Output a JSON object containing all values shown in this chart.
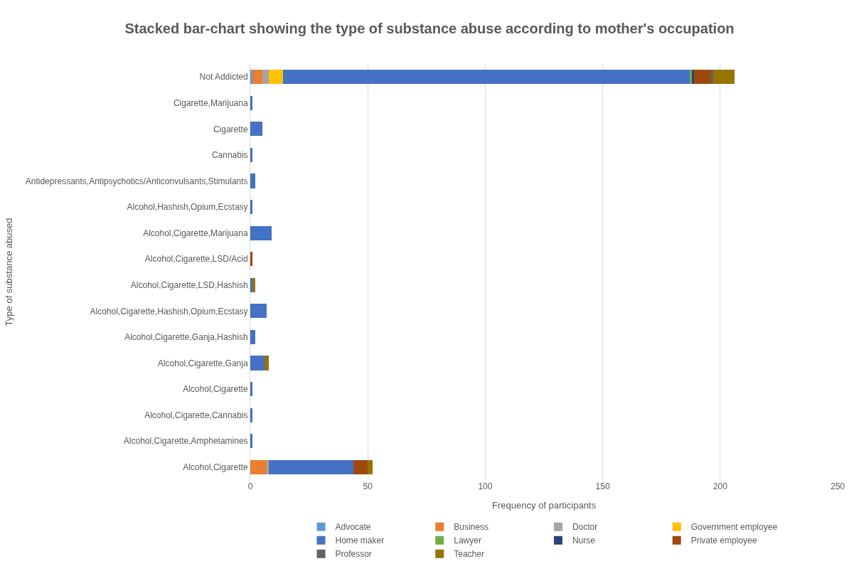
{
  "chart_data": {
    "type": "bar",
    "orientation": "horizontal",
    "stacked": true,
    "title": "Stacked bar-chart showing the type of substance abuse according to mother's occupation",
    "xlabel": "Frequency of participants",
    "ylabel": "Type of substance abused",
    "categories": [
      "Not Addicted",
      "Cigarette,Marijuana",
      "Cigarette",
      "Cannabis",
      "Antidepressants,Antipsychotics/Anticonvulsants,Stimulants",
      "Alcohol,Hashish,Opium,Ecstasy",
      "Alcohol,Cigarette,Marijuana",
      "Alcohol,Cigarette,LSD/Acid",
      "Alcohol,Cigarette,LSD,Hashish",
      "Alcohol,Cigarette,Hashish,Opium,Ecstasy",
      "Alcohol,Cigarette,Ganja,Hashish",
      "Alcohol,Cigarette,Ganja",
      "Alcohol,Cigarette",
      "Alcohol,Cigarette,Cannabis",
      "Alcohol,Cigarette,Amphetamines",
      "Alcohol,Cigarette"
    ],
    "series": [
      {
        "name": "Advocate",
        "color": "#5b9bd5",
        "values": [
          1,
          0,
          0,
          0,
          0,
          0,
          0,
          0,
          0,
          0,
          0,
          0,
          0,
          0,
          0,
          0
        ]
      },
      {
        "name": "Business",
        "color": "#ed7d31",
        "values": [
          4,
          0,
          0,
          0,
          0,
          0,
          0,
          0,
          0,
          0,
          0,
          0,
          0,
          0,
          0,
          7
        ]
      },
      {
        "name": "Doctor",
        "color": "#a5a5a5",
        "values": [
          3,
          0,
          0,
          0,
          0,
          0,
          0,
          0,
          0,
          0,
          0,
          0,
          0,
          0,
          0,
          1
        ]
      },
      {
        "name": "Government employee",
        "color": "#ffc000",
        "values": [
          6,
          0,
          0,
          0,
          0,
          0,
          0,
          0,
          0,
          0,
          0,
          0,
          0,
          0,
          0,
          0
        ]
      },
      {
        "name": "Home maker",
        "color": "#4472c4",
        "values": [
          173,
          1,
          5,
          1,
          2,
          1,
          9,
          0,
          1,
          7,
          2,
          6,
          1,
          1,
          1,
          36
        ]
      },
      {
        "name": "Lawyer",
        "color": "#70ad47",
        "values": [
          1,
          0,
          0,
          0,
          0,
          0,
          0,
          0,
          0,
          0,
          0,
          0,
          0,
          0,
          0,
          0
        ]
      },
      {
        "name": "Nurse",
        "color": "#264478",
        "values": [
          1,
          0,
          0,
          0,
          0,
          0,
          0,
          0,
          0,
          0,
          0,
          0,
          0,
          0,
          0,
          0
        ]
      },
      {
        "name": "Private employee",
        "color": "#9e480e",
        "values": [
          7,
          0,
          0,
          0,
          0,
          0,
          0,
          1,
          0,
          0,
          0,
          0,
          0,
          0,
          0,
          6
        ]
      },
      {
        "name": "Professor",
        "color": "#636363",
        "values": [
          1,
          0,
          0,
          0,
          0,
          0,
          0,
          0,
          0,
          0,
          0,
          0,
          0,
          0,
          0,
          0
        ]
      },
      {
        "name": "Teacher",
        "color": "#997300",
        "values": [
          9,
          0,
          0,
          0,
          0,
          0,
          0,
          0,
          1,
          0,
          0,
          2,
          0,
          0,
          0,
          2
        ]
      }
    ],
    "xlim": [
      0,
      250
    ],
    "xticks": [
      0,
      50,
      100,
      150,
      200,
      250
    ],
    "grid": "x",
    "legend": "bottom"
  }
}
